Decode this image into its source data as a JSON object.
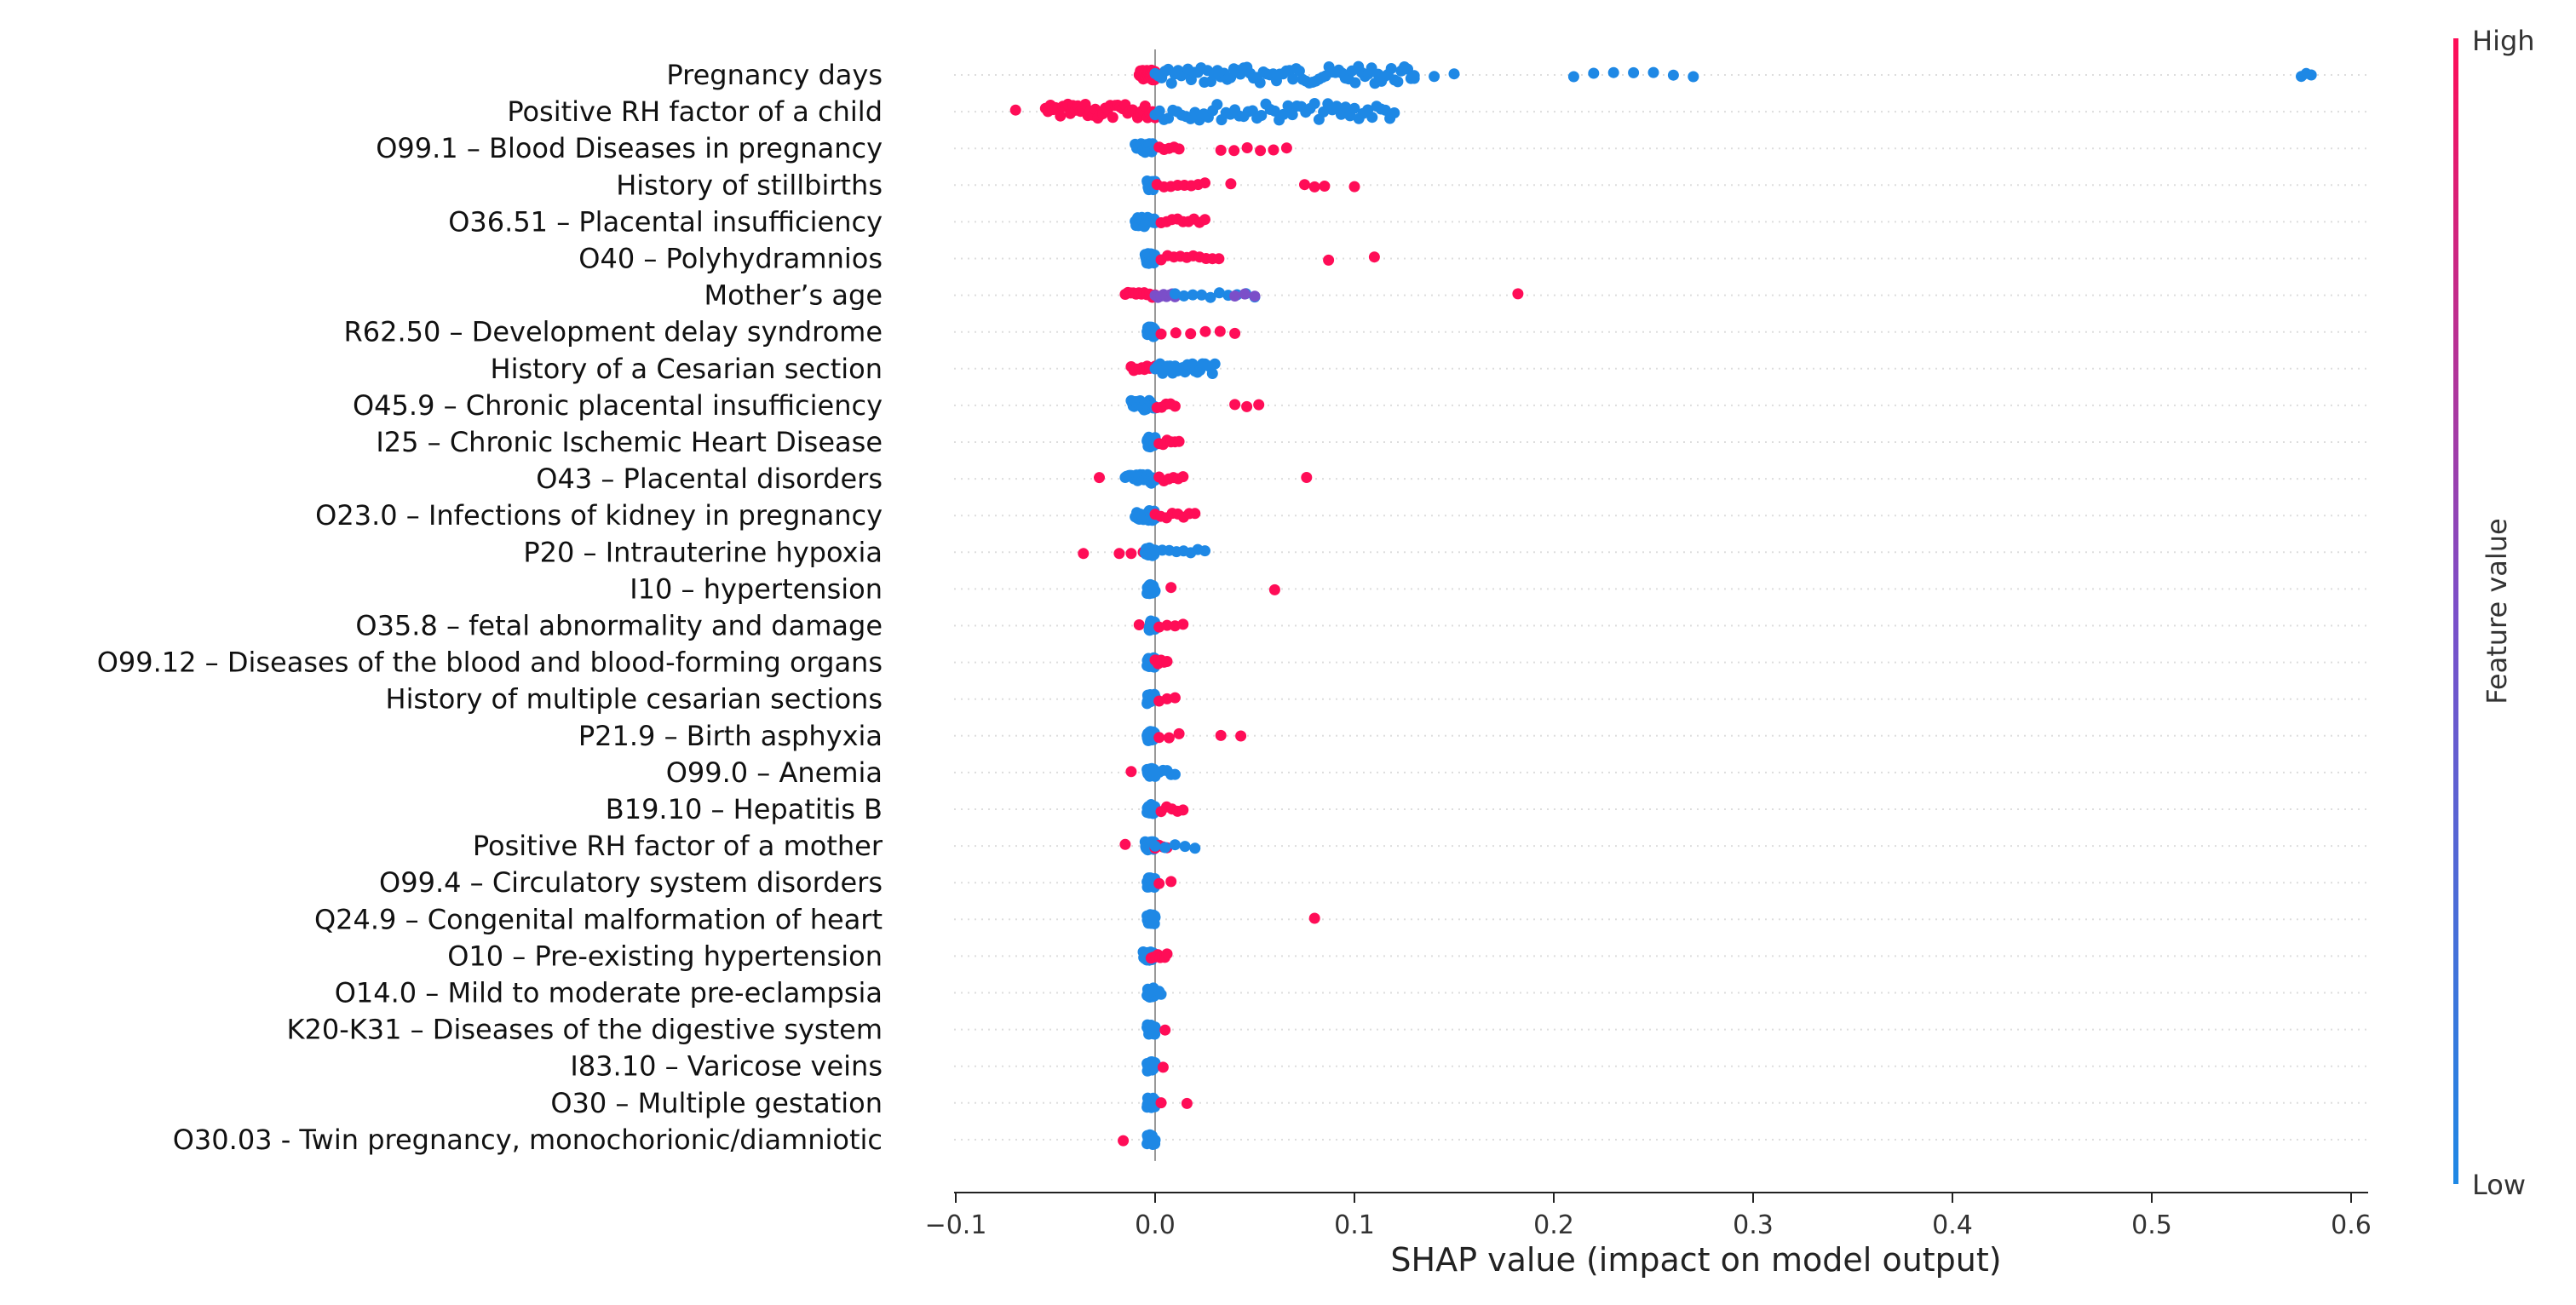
{
  "chart_data": {
    "type": "scatter",
    "subtype": "shap-beeswarm",
    "xlabel": "SHAP value (impact on model output)",
    "xlim": [
      -0.1,
      0.6
    ],
    "xticks": [
      -0.1,
      0.0,
      0.1,
      0.2,
      0.3,
      0.4,
      0.5,
      0.6
    ],
    "xtick_labels": [
      "−0.1",
      "0.0",
      "0.1",
      "0.2",
      "0.3",
      "0.4",
      "0.5",
      "0.6"
    ],
    "colorbar": {
      "title": "Feature value",
      "high_label": "High",
      "low_label": "Low",
      "high_color": "#ff0d57",
      "low_color": "#1e88e5",
      "mid_color": "#7b4fc9"
    },
    "features": [
      {
        "name": "Pregnancy days",
        "clusters": [
          [
            -0.008,
            0.0,
            "high",
            28
          ],
          [
            0.0,
            0.13,
            "low",
            80
          ],
          [
            0.13,
            0.15,
            "low",
            3
          ],
          [
            0.21,
            0.27,
            "low",
            7
          ],
          [
            0.575,
            0.58,
            "low",
            3
          ]
        ]
      },
      {
        "name": "Positive RH factor of a child",
        "clusters": [
          [
            -0.07,
            -0.07,
            "high",
            1
          ],
          [
            -0.055,
            0.0,
            "high",
            45
          ],
          [
            0.0,
            0.12,
            "low",
            55
          ]
        ]
      },
      {
        "name": "O99.1 – Blood Diseases in pregnancy",
        "clusters": [
          [
            -0.01,
            0.0,
            "low",
            25
          ],
          [
            0.002,
            0.012,
            "high",
            5
          ],
          [
            0.033,
            0.066,
            "high",
            6
          ]
        ]
      },
      {
        "name": "History of stillbirths",
        "clusters": [
          [
            -0.004,
            0.0,
            "low",
            25
          ],
          [
            0.001,
            0.025,
            "high",
            8
          ],
          [
            0.038,
            0.038,
            "high",
            1
          ],
          [
            0.075,
            0.085,
            "high",
            3
          ],
          [
            0.1,
            0.1,
            "high",
            1
          ]
        ]
      },
      {
        "name": "O36.51 – Placental insufficiency",
        "clusters": [
          [
            -0.01,
            0.0,
            "low",
            25
          ],
          [
            0.003,
            0.025,
            "high",
            9
          ]
        ]
      },
      {
        "name": "O40 – Polyhydramnios",
        "clusters": [
          [
            -0.005,
            0.0,
            "low",
            25
          ],
          [
            0.003,
            0.032,
            "high",
            10
          ],
          [
            0.087,
            0.087,
            "high",
            1
          ],
          [
            0.11,
            0.11,
            "high",
            1
          ]
        ]
      },
      {
        "name": "Mother’s age",
        "clusters": [
          [
            -0.015,
            0.0,
            "high",
            12
          ],
          [
            0.0,
            0.01,
            "mid",
            8
          ],
          [
            0.01,
            0.05,
            "low",
            10
          ],
          [
            0.04,
            0.05,
            "mid",
            3
          ],
          [
            0.182,
            0.182,
            "high",
            1
          ]
        ]
      },
      {
        "name": "R62.50 – Development delay syndrome",
        "clusters": [
          [
            -0.004,
            0.0,
            "low",
            25
          ],
          [
            0.003,
            0.04,
            "high",
            6
          ]
        ]
      },
      {
        "name": "History of a Cesarian section",
        "clusters": [
          [
            -0.012,
            0.0,
            "high",
            10
          ],
          [
            0.0,
            0.03,
            "low",
            25
          ]
        ]
      },
      {
        "name": "O45.9 – Chronic placental insufficiency",
        "clusters": [
          [
            -0.012,
            0.0,
            "low",
            25
          ],
          [
            0.001,
            0.01,
            "high",
            5
          ],
          [
            0.04,
            0.052,
            "high",
            3
          ]
        ]
      },
      {
        "name": "I25 – Chronic Ischemic Heart Disease",
        "clusters": [
          [
            -0.004,
            0.0,
            "low",
            25
          ],
          [
            0.002,
            0.012,
            "high",
            6
          ]
        ]
      },
      {
        "name": "O43 – Placental disorders",
        "clusters": [
          [
            -0.028,
            -0.028,
            "high",
            1
          ],
          [
            -0.015,
            0.0,
            "low",
            25
          ],
          [
            0.002,
            0.014,
            "high",
            6
          ],
          [
            0.076,
            0.076,
            "high",
            1
          ]
        ]
      },
      {
        "name": "O23.0 – Infections of kidney in pregnancy",
        "clusters": [
          [
            -0.01,
            0.0,
            "low",
            25
          ],
          [
            0.0,
            0.02,
            "high",
            8
          ]
        ]
      },
      {
        "name": "P20 – Intrauterine hypoxia",
        "clusters": [
          [
            -0.036,
            -0.036,
            "high",
            1
          ],
          [
            -0.018,
            -0.006,
            "high",
            3
          ],
          [
            -0.005,
            0.0,
            "low",
            20
          ],
          [
            0.0,
            0.025,
            "low",
            8
          ]
        ]
      },
      {
        "name": "I10 – hypertension",
        "clusters": [
          [
            -0.004,
            0.0,
            "low",
            25
          ],
          [
            0.008,
            0.008,
            "high",
            1
          ],
          [
            0.06,
            0.06,
            "high",
            1
          ]
        ]
      },
      {
        "name": "O35.8 – fetal abnormality and damage",
        "clusters": [
          [
            -0.008,
            -0.008,
            "high",
            1
          ],
          [
            -0.003,
            0.0,
            "low",
            25
          ],
          [
            0.002,
            0.014,
            "high",
            4
          ]
        ]
      },
      {
        "name": "O99.12 – Diseases of the blood and blood-forming organs",
        "clusters": [
          [
            -0.004,
            0.0,
            "low",
            25
          ],
          [
            0.0,
            0.006,
            "high",
            5
          ]
        ]
      },
      {
        "name": "History of multiple cesarian sections",
        "clusters": [
          [
            -0.004,
            0.0,
            "low",
            25
          ],
          [
            0.002,
            0.01,
            "high",
            3
          ]
        ]
      },
      {
        "name": "P21.9 – Birth asphyxia",
        "clusters": [
          [
            -0.004,
            0.0,
            "low",
            25
          ],
          [
            0.002,
            0.012,
            "high",
            3
          ],
          [
            0.033,
            0.043,
            "high",
            2
          ]
        ]
      },
      {
        "name": "O99.0 – Anemia",
        "clusters": [
          [
            -0.012,
            -0.012,
            "high",
            1
          ],
          [
            -0.004,
            0.0,
            "low",
            20
          ],
          [
            0.0,
            0.01,
            "low",
            6
          ]
        ]
      },
      {
        "name": "B19.10 – Hepatitis B",
        "clusters": [
          [
            -0.004,
            0.0,
            "low",
            25
          ],
          [
            0.003,
            0.014,
            "high",
            5
          ]
        ]
      },
      {
        "name": "Positive RH factor of a mother",
        "clusters": [
          [
            -0.015,
            -0.015,
            "high",
            1
          ],
          [
            -0.005,
            0.0,
            "low",
            20
          ],
          [
            0.0,
            0.006,
            "high",
            4
          ],
          [
            0.0,
            0.02,
            "low",
            5
          ]
        ]
      },
      {
        "name": "O99.4 – Circulatory system disorders",
        "clusters": [
          [
            -0.004,
            0.0,
            "low",
            25
          ],
          [
            0.002,
            0.008,
            "high",
            2
          ]
        ]
      },
      {
        "name": "Q24.9 – Congenital malformation of heart",
        "clusters": [
          [
            -0.004,
            0.0,
            "low",
            25
          ],
          [
            0.08,
            0.08,
            "high",
            1
          ]
        ]
      },
      {
        "name": "O10 – Pre-existing hypertension",
        "clusters": [
          [
            -0.006,
            0.0,
            "low",
            20
          ],
          [
            -0.002,
            0.006,
            "high",
            8
          ]
        ]
      },
      {
        "name": "O14.0 – Mild to moderate pre-eclampsia",
        "clusters": [
          [
            -0.004,
            0.0,
            "low",
            25
          ],
          [
            0.0,
            0.003,
            "low",
            4
          ]
        ]
      },
      {
        "name": "K20-K31 – Diseases of the digestive system",
        "clusters": [
          [
            -0.004,
            0.0,
            "low",
            25
          ],
          [
            0.005,
            0.005,
            "high",
            1
          ]
        ]
      },
      {
        "name": "I83.10 – Varicose veins",
        "clusters": [
          [
            -0.004,
            0.0,
            "low",
            25
          ],
          [
            0.004,
            0.004,
            "high",
            1
          ]
        ]
      },
      {
        "name": "O30 – Multiple gestation",
        "clusters": [
          [
            -0.004,
            0.0,
            "low",
            25
          ],
          [
            0.003,
            0.003,
            "high",
            1
          ],
          [
            0.016,
            0.016,
            "high",
            1
          ]
        ]
      },
      {
        "name": "O30.03 - Twin pregnancy, monochorionic/diamniotic",
        "clusters": [
          [
            -0.016,
            -0.016,
            "high",
            1
          ],
          [
            -0.004,
            0.0,
            "low",
            25
          ]
        ]
      }
    ]
  }
}
